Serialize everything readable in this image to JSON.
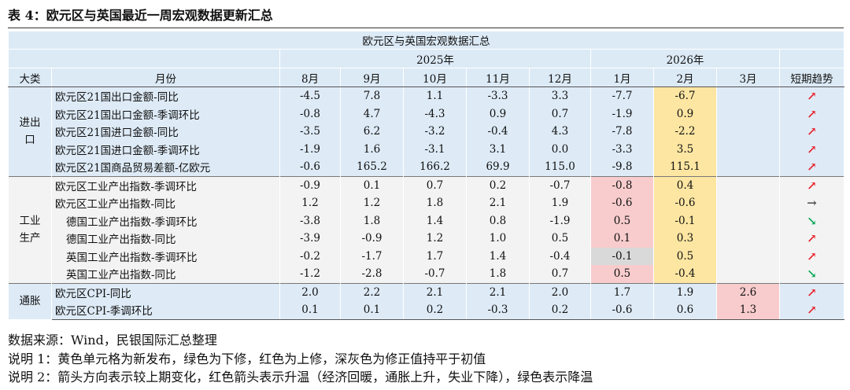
{
  "title": "表 4：欧元区与英国最近一周宏观数据更新汇总",
  "table": {
    "caption": "欧元区与英国宏观数据汇总",
    "years": [
      "2025年",
      "2026年"
    ],
    "columns": [
      "大类",
      "月份",
      "8月",
      "9月",
      "10月",
      "11月",
      "12月",
      "1月",
      "2月",
      "3月",
      "短期趋势"
    ],
    "groups": [
      {
        "name": "进出口",
        "rows": [
          {
            "label": "欧元区21国出口金额-同比",
            "cells": [
              "-4.5",
              "7.8",
              "1.1",
              "-3.3",
              "3.3",
              "-7.7",
              "-6.7",
              null
            ],
            "highlights": {
              "6": "#fde6a2"
            },
            "trend": {
              "symbol": "↗",
              "color": "#e8212a"
            }
          },
          {
            "label": "欧元区21国出口金额-季调环比",
            "cells": [
              "-0.8",
              "4.7",
              "-4.3",
              "0.9",
              "0.7",
              "-1.9",
              "0.9",
              null
            ],
            "highlights": {
              "6": "#fde6a2"
            },
            "trend": {
              "symbol": "↗",
              "color": "#e8212a"
            }
          },
          {
            "label": "欧元区21国进口金额-同比",
            "cells": [
              "-3.5",
              "6.2",
              "-3.2",
              "-0.4",
              "4.3",
              "-7.8",
              "-2.2",
              null
            ],
            "highlights": {
              "6": "#fde6a2"
            },
            "trend": {
              "symbol": "↗",
              "color": "#e8212a"
            }
          },
          {
            "label": "欧元区21国进口金额-季调环比",
            "cells": [
              "-1.9",
              "1.6",
              "-3.1",
              "3.1",
              "0.0",
              "-3.3",
              "3.5",
              null
            ],
            "highlights": {
              "6": "#fde6a2"
            },
            "trend": {
              "symbol": "↗",
              "color": "#e8212a"
            }
          },
          {
            "label": "欧元区21国商品贸易差额-亿欧元",
            "cells": [
              "-0.6",
              "165.2",
              "166.2",
              "69.9",
              "115.0",
              "-9.8",
              "115.1",
              null
            ],
            "highlights": {
              "6": "#fde6a2"
            },
            "trend": {
              "symbol": "↗",
              "color": "#e8212a"
            }
          }
        ]
      },
      {
        "name": "工业生产",
        "rows": [
          {
            "label": "欧元区工业产出指数-季调环比",
            "cells": [
              "-0.9",
              "0.1",
              "0.7",
              "0.2",
              "-0.7",
              "-0.8",
              "0.4",
              null
            ],
            "highlights": {
              "5": "#f8cccd",
              "6": "#fde6a2"
            },
            "trend": {
              "symbol": "↗",
              "color": "#e8212a"
            }
          },
          {
            "label": "欧元区工业产出指数-同比",
            "cells": [
              "1.2",
              "1.2",
              "1.8",
              "2.1",
              "1.9",
              "-0.6",
              "-0.6",
              null
            ],
            "highlights": {
              "5": "#f8cccd",
              "6": "#fde6a2"
            },
            "trend": {
              "symbol": "→",
              "color": "#555555"
            }
          },
          {
            "label": "德国工业产出指数-季调环比",
            "cells": [
              "-3.8",
              "1.8",
              "1.4",
              "0.8",
              "-1.9",
              "0.5",
              "-0.1",
              null
            ],
            "highlights": {
              "5": "#f8cccd",
              "6": "#fde6a2"
            },
            "trend": {
              "symbol": "↘",
              "color": "#00a651"
            }
          },
          {
            "label": "德国工业产出指数-同比",
            "cells": [
              "-3.9",
              "-0.9",
              "1.2",
              "1.0",
              "0.5",
              "0.1",
              "0.3",
              null
            ],
            "highlights": {
              "5": "#f8cccd",
              "6": "#fde6a2"
            },
            "trend": {
              "symbol": "↗",
              "color": "#e8212a"
            }
          },
          {
            "label": "英国工业产出指数-季调环比",
            "cells": [
              "-0.2",
              "-1.7",
              "1.7",
              "1.4",
              "-0.4",
              "-0.1",
              "0.5",
              null
            ],
            "highlights": {
              "5": "#d9d9d9",
              "6": "#fde6a2"
            },
            "trend": {
              "symbol": "↗",
              "color": "#e8212a"
            }
          },
          {
            "label": "英国工业产出指数-同比",
            "cells": [
              "-1.2",
              "-2.8",
              "-0.7",
              "1.8",
              "0.7",
              "0.5",
              "-0.4",
              null
            ],
            "highlights": {
              "5": "#f8cccd",
              "6": "#fde6a2"
            },
            "trend": {
              "symbol": "↘",
              "color": "#00a651"
            }
          }
        ]
      },
      {
        "name": "通胀",
        "rows": [
          {
            "label": "欧元区CPI-同比",
            "cells": [
              "2.0",
              "2.2",
              "2.1",
              "2.1",
              "2.0",
              "1.7",
              "1.9",
              "2.6"
            ],
            "highlights": {
              "7": "#f8cccd"
            },
            "trend": {
              "symbol": "↗",
              "color": "#e8212a"
            }
          },
          {
            "label": "欧元区CPI-季调环比",
            "cells": [
              "0.1",
              "0.1",
              "0.2",
              "-0.3",
              "0.2",
              "-0.6",
              "0.6",
              "1.3"
            ],
            "highlights": {
              "7": "#f8cccd"
            },
            "trend": {
              "symbol": "↗",
              "color": "#e8212a"
            }
          }
        ]
      }
    ]
  },
  "notes": [
    "数据来源：Wind，民银国际汇总整理",
    "说明 1：黄色单元格为新发布，绿色为下修，红色为上修，深灰色为修正值持平于初值",
    "说明 2：箭头方向表示较上期变化，红色箭头表示升温（经济回暖，通胀上升，失业下降），绿色表示降温"
  ]
}
